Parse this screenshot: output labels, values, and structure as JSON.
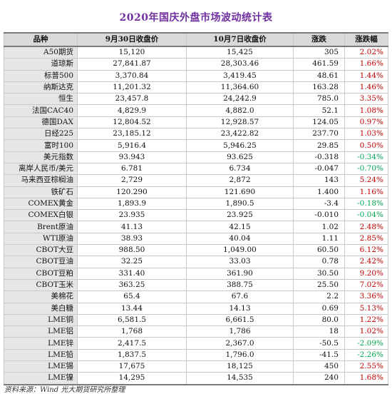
{
  "title": "2020年国庆外盘市场波动统计表",
  "headers": [
    "品种",
    "9月30日收盘价",
    "10月7日收盘价",
    "涨跌",
    "涨跌幅"
  ],
  "rows": [
    {
      "name": "A50期货",
      "close_0930": "15,120",
      "close_1007": "15,425",
      "change": "305",
      "pct": "2.02%",
      "dir": "up"
    },
    {
      "name": "道琼斯",
      "close_0930": "27,841.87",
      "close_1007": "28,303.46",
      "change": "461.59",
      "pct": "1.66%",
      "dir": "up"
    },
    {
      "name": "标普500",
      "close_0930": "3,370.84",
      "close_1007": "3,419.45",
      "change": "48.61",
      "pct": "1.44%",
      "dir": "up"
    },
    {
      "name": "纳斯达克",
      "close_0930": "11,201.32",
      "close_1007": "11,364.60",
      "change": "163.28",
      "pct": "1.46%",
      "dir": "up"
    },
    {
      "name": "恒生",
      "close_0930": "23,457.8",
      "close_1007": "24,242.9",
      "change": "785.0",
      "pct": "3.35%",
      "dir": "up"
    },
    {
      "name": "法国CAC40",
      "close_0930": "4,829.9",
      "close_1007": "4,882.0",
      "change": "52.1",
      "pct": "1.08%",
      "dir": "up"
    },
    {
      "name": "德国DAX",
      "close_0930": "12,804.52",
      "close_1007": "12,928.57",
      "change": "124.05",
      "pct": "0.97%",
      "dir": "up"
    },
    {
      "name": "日经225",
      "close_0930": "23,185.12",
      "close_1007": "23,422.82",
      "change": "237.70",
      "pct": "1.03%",
      "dir": "up"
    },
    {
      "name": "富时100",
      "close_0930": "5,916.4",
      "close_1007": "5,946.25",
      "change": "29.85",
      "pct": "0.50%",
      "dir": "up"
    },
    {
      "name": "美元指数",
      "close_0930": "93.943",
      "close_1007": "93.625",
      "change": "-0.318",
      "pct": "-0.34%",
      "dir": "down"
    },
    {
      "name": "离岸人民币/美元",
      "close_0930": "6.781",
      "close_1007": "6.734",
      "change": "-0.047",
      "pct": "-0.70%",
      "dir": "down"
    },
    {
      "name": "马来西亚棕榈油",
      "close_0930": "2,729",
      "close_1007": "2,872",
      "change": "143",
      "pct": "5.24%",
      "dir": "up"
    },
    {
      "name": "铁矿石",
      "close_0930": "120.290",
      "close_1007": "121.690",
      "change": "1.400",
      "pct": "1.16%",
      "dir": "up"
    },
    {
      "name": "COMEX黄金",
      "close_0930": "1,893.9",
      "close_1007": "1,890.5",
      "change": "-3.4",
      "pct": "-0.18%",
      "dir": "down"
    },
    {
      "name": "COMEX白银",
      "close_0930": "23.935",
      "close_1007": "23.925",
      "change": "-0.010",
      "pct": "-0.04%",
      "dir": "down"
    },
    {
      "name": "Brent原油",
      "close_0930": "41.13",
      "close_1007": "42.15",
      "change": "1.02",
      "pct": "2.48%",
      "dir": "up"
    },
    {
      "name": "WTI原油",
      "close_0930": "38.93",
      "close_1007": "40.04",
      "change": "1.11",
      "pct": "2.85%",
      "dir": "up"
    },
    {
      "name": "CBOT大豆",
      "close_0930": "988.50",
      "close_1007": "1,049.00",
      "change": "60.50",
      "pct": "6.12%",
      "dir": "up"
    },
    {
      "name": "CBOT豆油",
      "close_0930": "32.25",
      "close_1007": "33.03",
      "change": "0.78",
      "pct": "2.42%",
      "dir": "up"
    },
    {
      "name": "CBOT豆粕",
      "close_0930": "331.40",
      "close_1007": "361.90",
      "change": "30.50",
      "pct": "9.20%",
      "dir": "up"
    },
    {
      "name": "CBOT玉米",
      "close_0930": "363.25",
      "close_1007": "388.75",
      "change": "25.50",
      "pct": "7.02%",
      "dir": "up"
    },
    {
      "name": "美棉花",
      "close_0930": "65.4",
      "close_1007": "67.6",
      "change": "2.2",
      "pct": "3.36%",
      "dir": "up"
    },
    {
      "name": "美白糖",
      "close_0930": "13.44",
      "close_1007": "14.13",
      "change": "0.69",
      "pct": "5.13%",
      "dir": "up"
    },
    {
      "name": "LME铜",
      "close_0930": "6,581.5",
      "close_1007": "6,661.5",
      "change": "80.0",
      "pct": "1.22%",
      "dir": "up"
    },
    {
      "name": "LME铝",
      "close_0930": "1,768",
      "close_1007": "1,786",
      "change": "18",
      "pct": "1.02%",
      "dir": "up"
    },
    {
      "name": "LME锌",
      "close_0930": "2,417.5",
      "close_1007": "2,367.0",
      "change": "-50.5",
      "pct": "-2.09%",
      "dir": "down"
    },
    {
      "name": "LME铅",
      "close_0930": "1,837.5",
      "close_1007": "1,796.0",
      "change": "-41.5",
      "pct": "-2.26%",
      "dir": "down"
    },
    {
      "name": "LME锡",
      "close_0930": "17,675",
      "close_1007": "18,125",
      "change": "450",
      "pct": "2.55%",
      "dir": "up"
    },
    {
      "name": "LME镍",
      "close_0930": "14,295",
      "close_1007": "14,535",
      "change": "240",
      "pct": "1.68%",
      "dir": "up"
    }
  ],
  "colors": {
    "up": "#c00000",
    "down": "#00a651",
    "title": "#7030a0"
  },
  "source": "资料来源：Wind  光大期货研究所整理"
}
